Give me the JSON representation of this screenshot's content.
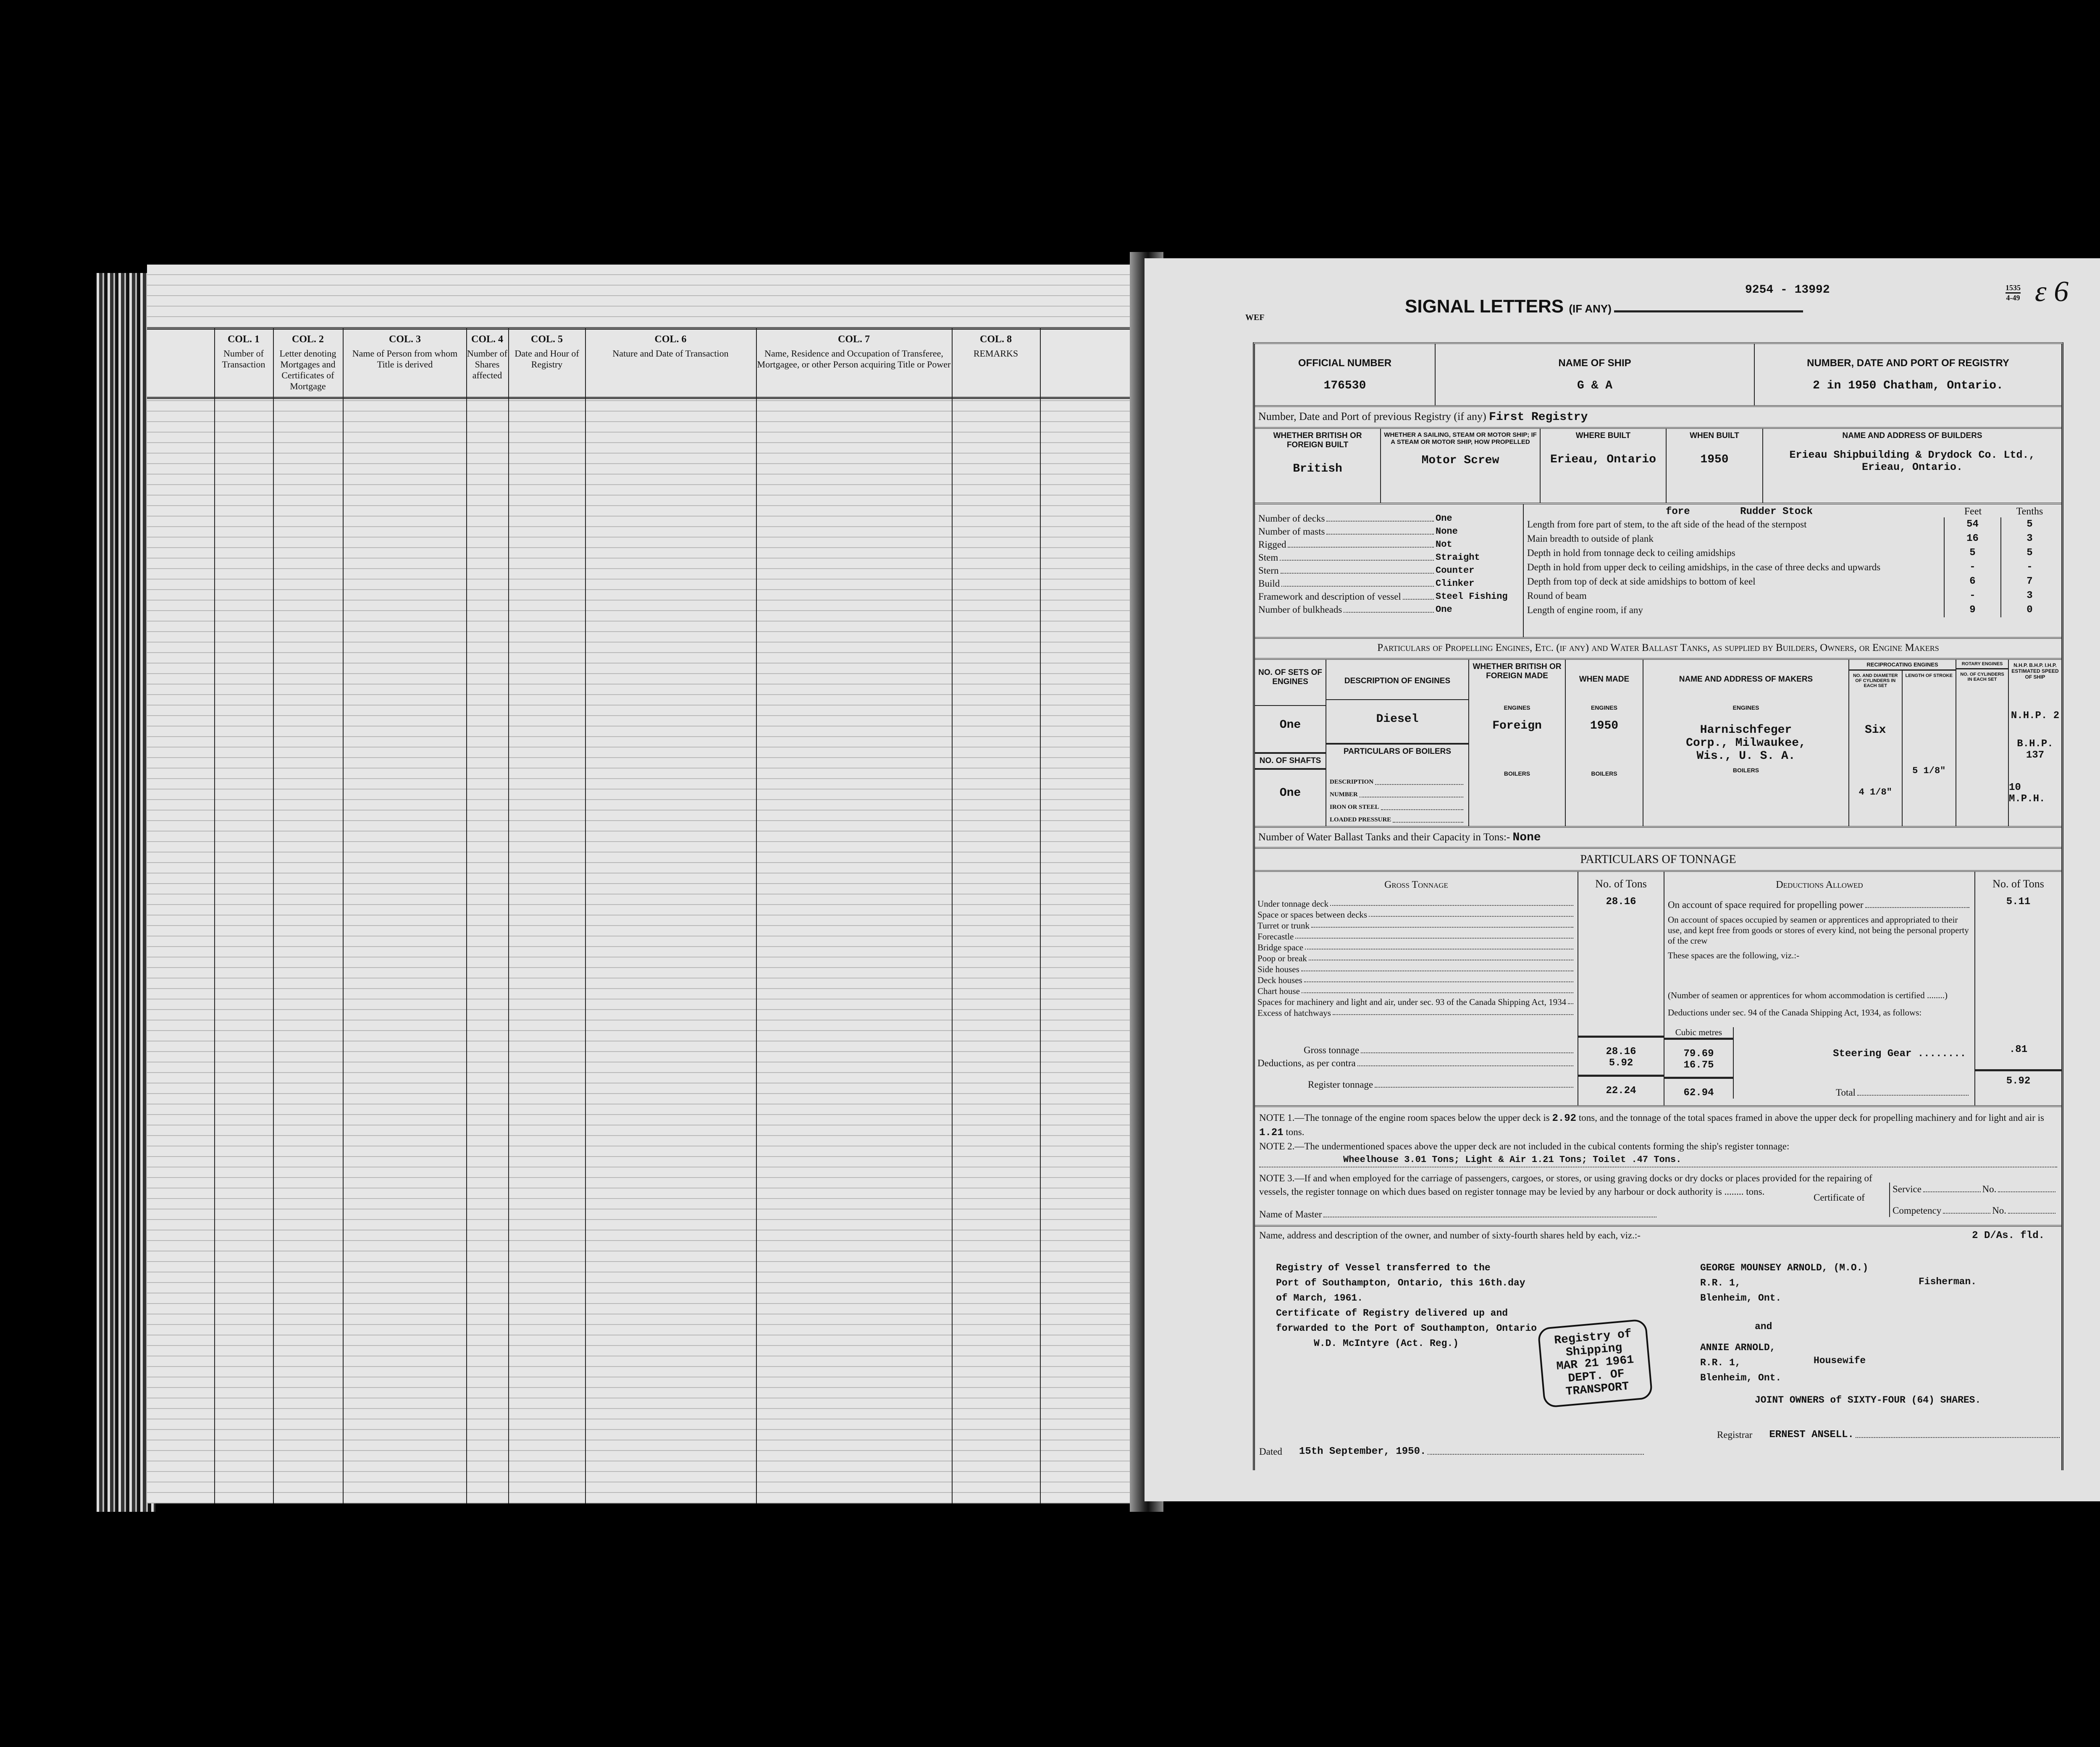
{
  "left_page": {
    "columns": [
      {
        "col": "COL. 1",
        "title": "Number of Transaction"
      },
      {
        "col": "COL. 2",
        "title": "Letter denoting Mortgages and Certificates of Mortgage"
      },
      {
        "col": "COL. 3",
        "title": "Name of Person from whom Title is derived"
      },
      {
        "col": "COL. 4",
        "title": "Number of Shares affected"
      },
      {
        "col": "COL. 5",
        "title": "Date and Hour of Registry"
      },
      {
        "col": "COL. 6",
        "title": "Nature and Date of Transaction"
      },
      {
        "col": "COL. 7",
        "title": "Name, Residence and Occupation of Transferee, Mortgagee, or other Person acquiring Title or Power"
      },
      {
        "col": "COL. 8",
        "title": "REMARKS"
      }
    ]
  },
  "right_page": {
    "corner_mark": "WEF",
    "signal_letters": "SIGNAL LETTERS",
    "signal_letters_suffix": "(IF ANY)",
    "file_numbers": "9254 - 13992",
    "side_fraction_top": "1535",
    "side_fraction_bottom": "4-49",
    "handwritten_mark": "ɛ 6",
    "official_number_label": "OFFICIAL NUMBER",
    "official_number": "176530",
    "name_of_ship_label": "NAME OF SHIP",
    "name_of_ship": "G & A",
    "registry_label": "NUMBER, DATE AND PORT OF REGISTRY",
    "registry": "2 in 1950   Chatham, Ontario.",
    "previous_registry_label": "Number, Date and Port of previous Registry (if any)",
    "previous_registry": "First Registry",
    "build": {
      "headers": [
        "WHETHER BRITISH OR FOREIGN BUILT",
        "WHETHER A SAILING, STEAM OR MOTOR SHIP; IF A STEAM OR MOTOR SHIP, HOW PROPELLED",
        "WHERE BUILT",
        "WHEN BUILT",
        "NAME AND ADDRESS OF BUILDERS"
      ],
      "values": [
        "British",
        "Motor Screw",
        "Erieau, Ontario",
        "1950",
        "Erieau Shipbuilding & Drydock Co. Ltd., Erieau, Ontario."
      ]
    },
    "particulars": [
      {
        "label": "Number of decks",
        "value": "One"
      },
      {
        "label": "Number of masts",
        "value": "None"
      },
      {
        "label": "Rigged",
        "value": "Not"
      },
      {
        "label": "Stem",
        "value": "Straight"
      },
      {
        "label": "Stern",
        "value": "Counter"
      },
      {
        "label": "Build",
        "value": "Clinker"
      },
      {
        "label": "Framework and description of vessel",
        "value": "Steel   Fishing"
      },
      {
        "label": "Number of bulkheads",
        "value": "One"
      }
    ],
    "dimensions": {
      "annotation_fore": "fore",
      "annotation_rudder": "Rudder Stock",
      "feet_label": "Feet",
      "tenths_label": "Tenths",
      "rows": [
        {
          "label": "Length from fore part of stem, to the aft side of the head of the sternpost",
          "feet": "54",
          "tenths": "5"
        },
        {
          "label": "Main breadth to outside of plank",
          "feet": "16",
          "tenths": "3"
        },
        {
          "label": "Depth in hold from tonnage deck to ceiling amidships",
          "feet": "5",
          "tenths": "5"
        },
        {
          "label": "Depth in hold from upper deck to ceiling amidships, in the case of three decks and upwards",
          "feet": "-",
          "tenths": "-"
        },
        {
          "label": "Depth from top of deck at side amidships to bottom of keel",
          "feet": "6",
          "tenths": "7"
        },
        {
          "label": "Round of beam",
          "feet": "-",
          "tenths": "3"
        },
        {
          "label": "Length of engine room, if any",
          "feet": "9",
          "tenths": "0"
        }
      ]
    },
    "engines": {
      "title": "Particulars of Propelling Engines, Etc. (if any) and Water Ballast Tanks, as supplied by Builders, Owners, or Engine Makers",
      "headers": [
        "NO. OF SETS OF ENGINES",
        "DESCRIPTION OF ENGINES",
        "WHETHER BRITISH OR FOREIGN MADE",
        "WHEN MADE",
        "NAME AND ADDRESS OF MAKERS",
        "NO. AND DIAMETER OF CYLINDERS IN EACH SET",
        "LENGTH OF STROKE",
        "NO. OF CYLINDERS IN EACH SET",
        "N.H.P. B.H.P. I.H.P. ESTIMATED SPEED OF SHIP"
      ],
      "reciprocating_label": "RECIPROCATING ENGINES",
      "rotary_label": "ROTARY ENGINES",
      "engines_sub": "ENGINES",
      "boilers_sub": "BOILERS",
      "sets": "One",
      "description": "Diesel",
      "made": "Foreign",
      "when": "1950",
      "maker": "Harnischfeger Corp., Milwaukee, Wis., U. S. A.",
      "cylinders": "Six",
      "cyl_diameter": "4 1/8\"",
      "stroke": "5 1/8\"",
      "nhp": "N.H.P. 2",
      "bhp": "B.H.P. 137",
      "speed": "10 M.P.H.",
      "shafts_label": "NO. OF SHAFTS",
      "shafts": "One",
      "boilers_label": "PARTICULARS OF BOILERS",
      "boiler_fields": [
        "DESCRIPTION",
        "NUMBER",
        "IRON OR STEEL",
        "LOADED PRESSURE"
      ]
    },
    "water_ballast_label": "Number of Water Ballast Tanks and their Capacity in Tons:-",
    "water_ballast": "None",
    "tonnage": {
      "title": "PARTICULARS OF TONNAGE",
      "gross_label": "Gross Tonnage",
      "tons_label": "No. of Tons",
      "deductions_label": "Deductions Allowed",
      "gross_rows": [
        {
          "label": "Under tonnage deck",
          "value": "28.16"
        },
        {
          "label": "Space or spaces between decks",
          "value": ""
        },
        {
          "label": "Turret or trunk",
          "value": ""
        },
        {
          "label": "Forecastle",
          "value": ""
        },
        {
          "label": "Bridge space",
          "value": ""
        },
        {
          "label": "Poop or break",
          "value": ""
        },
        {
          "label": "Side houses",
          "value": ""
        },
        {
          "label": "Deck houses",
          "value": ""
        },
        {
          "label": "Chart house",
          "value": ""
        },
        {
          "label": "Spaces for machinery and light and air, under sec. 93 of the Canada Shipping Act, 1934",
          "value": ""
        },
        {
          "label": "Excess of hatchways",
          "value": ""
        }
      ],
      "deduction_propelling": "On account of space required for propelling power",
      "deduction_propelling_value": "5.11",
      "deduction_crew": "On account of spaces occupied by seamen or apprentices and appropriated to their use, and kept free from goods or stores of every kind, not being the personal property of the crew",
      "spaces_following": "These spaces are the following, viz.:-",
      "seamen_note": "(Number of seamen or apprentices for whom accommodation is certified ........)",
      "sec94": "Deductions under sec. 94 of the Canada Shipping Act, 1934, as follows:",
      "cubic_metres_label": "Cubic metres",
      "gross_tonnage_label": "Gross tonnage",
      "gross_tonnage": "28.16",
      "gross_cubic": "79.69",
      "deductions_per_contra_label": "Deductions, as per contra",
      "deductions_per_contra": "5.92",
      "deductions_cubic": "16.75",
      "register_tonnage_label": "Register tonnage",
      "register_tonnage": "22.24",
      "register_cubic": "62.94",
      "steering_gear": "Steering Gear ........",
      "steering_gear_value": ".81",
      "total_label": "Total",
      "total": "5.92"
    },
    "notes": {
      "note1_a": "NOTE 1.—The tonnage of the engine room spaces below the upper deck is",
      "note1_v1": "2.92",
      "note1_b": "tons, and the tonnage of the total spaces framed in above the upper deck for propelling machinery and for light and air is",
      "note1_v2": "1.21",
      "note1_c": "tons.",
      "note2": "NOTE 2.—The undermentioned spaces above the upper deck are not included in the cubical contents forming the ship's register tonnage:",
      "note2_value": "Wheelhouse   3.01 Tons;   Light & Air  1.21 Tons;   Toilet  .47 Tons.",
      "note3": "NOTE 3.—If and when employed for the carriage of passengers, cargoes, or stores, or using graving docks or dry docks or places provided for the repairing of vessels, the register tonnage on which dues based on register tonnage may be levied by any harbour or dock authority is ........ tons.",
      "certificate_of": "Certificate of",
      "service": "Service",
      "competency": "Competency",
      "no": "No.",
      "master_label": "Name of Master"
    },
    "owners": {
      "label": "Name, address and description of the owner, and number of sixty-fourth shares held by each, viz.:-",
      "code": "2 D/As.  fld.",
      "transfer_lines": [
        "Registry of Vessel transferred to the",
        "Port of Southampton, Ontario, this 16th.day",
        "of March, 1961.",
        "Certificate of Registry delivered up and",
        "forwarded to the Port of Southampton, Ontario",
        "W.D. McIntyre  (Act. Reg.)"
      ],
      "owner1_lines": [
        "GEORGE MOUNSEY ARNOLD, (M.O.)",
        "R.R. 1,",
        "Blenheim, Ont."
      ],
      "owner1_occupation": "Fisherman.",
      "and": "and",
      "owner2_lines": [
        "ANNIE ARNOLD,",
        "R.R. 1,",
        "Blenheim, Ont."
      ],
      "owner2_occupation": "Housewife",
      "joint": "JOINT OWNERS  of  SIXTY-FOUR (64) SHARES.",
      "stamp_lines": [
        "Registry of Shipping",
        "MAR 21 1961",
        "DEPT. OF TRANSPORT"
      ],
      "dated_label": "Dated",
      "dated": "15th September, 1950.",
      "registrar_label": "Registrar",
      "registrar": "ERNEST ANSELL."
    }
  }
}
